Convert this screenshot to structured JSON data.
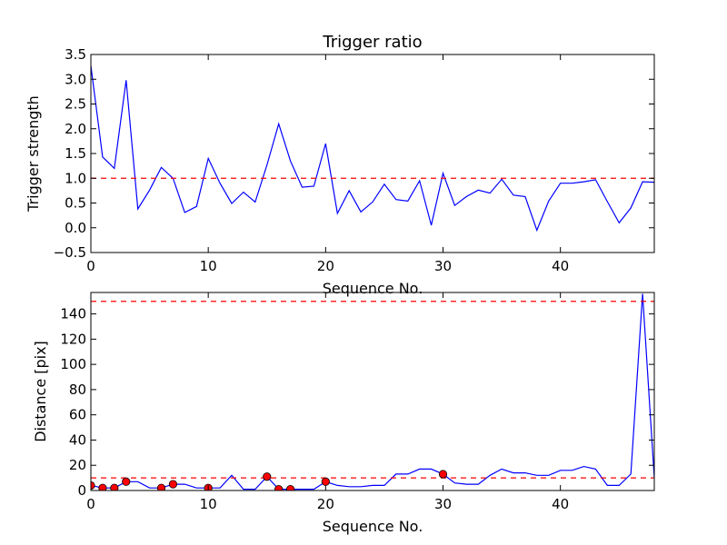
{
  "chart_data": [
    {
      "type": "line",
      "title": "Trigger ratio",
      "xlabel": "Sequence No.",
      "ylabel": "Trigger strength",
      "xlim": [
        0,
        48
      ],
      "ylim": [
        -0.5,
        3.5
      ],
      "xticks": [
        0,
        10,
        20,
        30,
        40
      ],
      "yticks": [
        -0.5,
        0.0,
        0.5,
        1.0,
        1.5,
        2.0,
        2.5,
        3.0,
        3.5
      ],
      "ytick_labels": [
        "−0.5",
        "0.0",
        "0.5",
        "1.0",
        "1.5",
        "2.0",
        "2.5",
        "3.0",
        "3.5"
      ],
      "grid": false,
      "line_color": "#0000ff",
      "threshold_color": "#ff0000",
      "series": [
        {
          "x": [
            0,
            1,
            2,
            3,
            4,
            5,
            6,
            7,
            8,
            9,
            10,
            11,
            12,
            13,
            14,
            15,
            16,
            17,
            18,
            19,
            20,
            21,
            22,
            23,
            24,
            25,
            26,
            27,
            28,
            29,
            30,
            31,
            32,
            33,
            34,
            35,
            36,
            37,
            38,
            39,
            40,
            41,
            42,
            43,
            44,
            45,
            46,
            47,
            48
          ],
          "values": [
            3.27,
            1.43,
            1.2,
            2.98,
            0.38,
            0.76,
            1.22,
            1.0,
            0.31,
            0.43,
            1.4,
            0.9,
            0.49,
            0.72,
            0.52,
            1.27,
            2.1,
            1.35,
            0.82,
            0.84,
            1.7,
            0.29,
            0.75,
            0.32,
            0.52,
            0.88,
            0.57,
            0.54,
            0.95,
            0.05,
            1.1,
            0.45,
            0.63,
            0.76,
            0.7,
            0.98,
            0.66,
            0.63,
            -0.05,
            0.54,
            0.9,
            0.9,
            0.93,
            0.97,
            0.53,
            0.1,
            0.4,
            0.93,
            0.92
          ]
        }
      ],
      "hlines": [
        1.0
      ]
    },
    {
      "type": "line",
      "title": "",
      "xlabel": "Sequence No.",
      "ylabel": "Distance [pix]",
      "xlim": [
        0,
        48
      ],
      "ylim": [
        0,
        157
      ],
      "xticks": [
        0,
        10,
        20,
        30,
        40
      ],
      "yticks": [
        0,
        20,
        40,
        60,
        80,
        100,
        120,
        140
      ],
      "ytick_labels": [
        "0",
        "20",
        "40",
        "60",
        "80",
        "100",
        "120",
        "140"
      ],
      "grid": false,
      "line_color": "#0000ff",
      "threshold_color": "#ff0000",
      "marker_color": "#ff0000",
      "series": [
        {
          "x": [
            0,
            1,
            2,
            3,
            4,
            5,
            6,
            7,
            8,
            9,
            10,
            11,
            12,
            13,
            14,
            15,
            16,
            17,
            18,
            19,
            20,
            21,
            22,
            23,
            24,
            25,
            26,
            27,
            28,
            29,
            30,
            31,
            32,
            33,
            34,
            35,
            36,
            37,
            38,
            39,
            40,
            41,
            42,
            43,
            44,
            45,
            46,
            47,
            48
          ],
          "values": [
            4,
            2,
            2,
            7,
            7,
            2,
            2,
            5,
            5,
            2,
            2,
            2,
            12,
            1,
            1,
            11,
            1,
            1,
            1,
            1,
            7,
            4,
            3,
            3,
            4,
            4,
            13,
            13,
            17,
            17,
            13,
            6,
            5,
            5,
            12,
            17,
            14,
            14,
            12,
            12,
            16,
            16,
            19,
            17,
            4,
            4,
            13,
            156,
            10
          ]
        }
      ],
      "markers": {
        "x": [
          0,
          1,
          2,
          3,
          6,
          7,
          10,
          15,
          16,
          17,
          20,
          30
        ],
        "values": [
          4,
          2,
          2,
          7,
          2,
          5,
          2,
          11,
          1,
          1,
          7,
          13
        ]
      },
      "hlines": [
        10,
        150
      ]
    }
  ]
}
